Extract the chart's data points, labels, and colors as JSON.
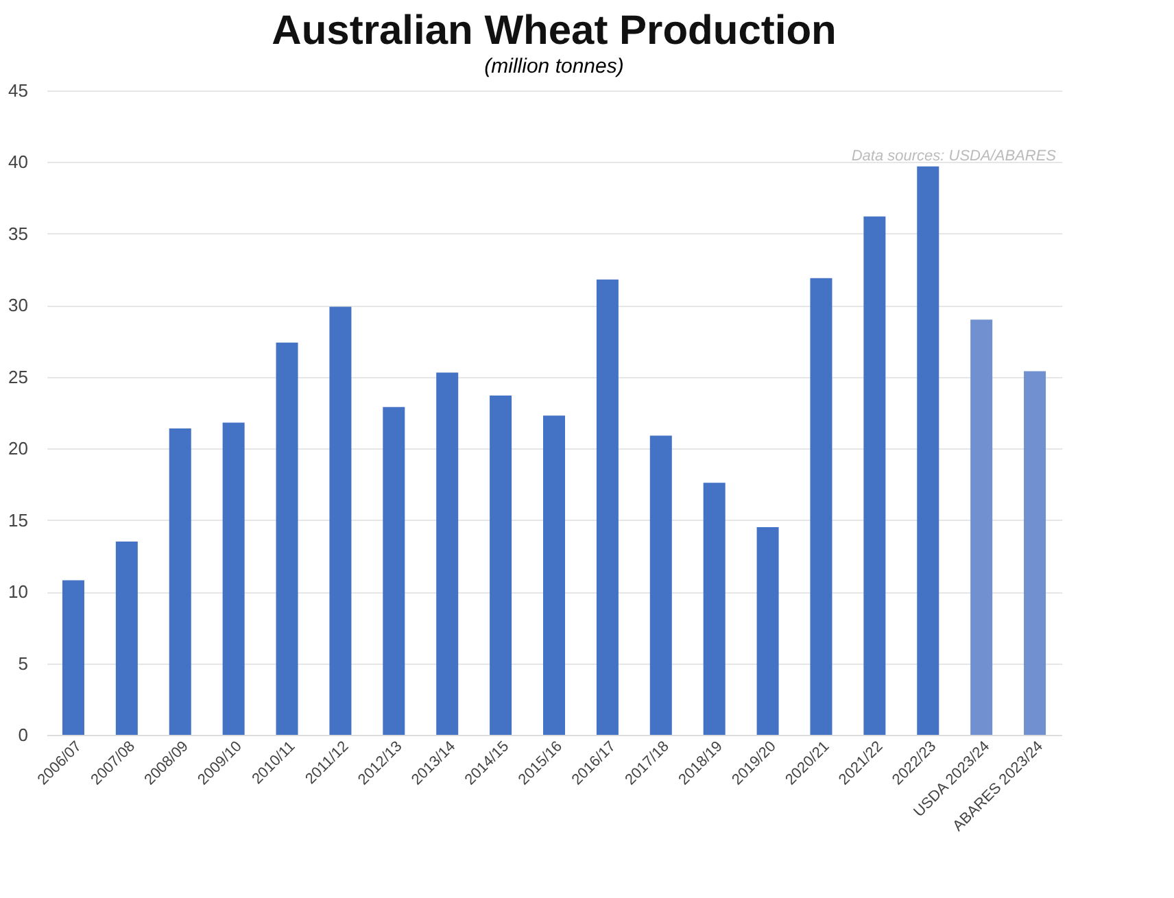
{
  "chart_data": {
    "type": "bar",
    "title": "Australian Wheat Production",
    "subtitle": "(million tonnes)",
    "categories": [
      "2006/07",
      "2007/08",
      "2008/09",
      "2009/10",
      "2010/11",
      "2011/12",
      "2012/13",
      "2013/14",
      "2014/15",
      "2015/16",
      "2016/17",
      "2017/18",
      "2018/19",
      "2019/20",
      "2020/21",
      "2021/22",
      "2022/23",
      "USDA 2023/24",
      "ABARES 2023/24"
    ],
    "values": [
      10.8,
      13.5,
      21.4,
      21.8,
      27.4,
      29.9,
      22.9,
      25.3,
      23.7,
      22.3,
      31.8,
      20.9,
      17.6,
      14.5,
      31.9,
      36.2,
      39.7,
      29.0,
      25.4
    ],
    "colors": [
      "#4472c4",
      "#4472c4",
      "#4472c4",
      "#4472c4",
      "#4472c4",
      "#4472c4",
      "#4472c4",
      "#4472c4",
      "#4472c4",
      "#4472c4",
      "#4472c4",
      "#4472c4",
      "#4472c4",
      "#4472c4",
      "#4472c4",
      "#4472c4",
      "#4472c4",
      "#7090cf",
      "#7090cf"
    ],
    "ylim": [
      0,
      45
    ],
    "yticks": [
      0,
      5,
      10,
      15,
      20,
      25,
      30,
      35,
      40,
      45
    ],
    "grid": "y",
    "annotations": [
      "Data sources: USDA/ABARES"
    ]
  }
}
